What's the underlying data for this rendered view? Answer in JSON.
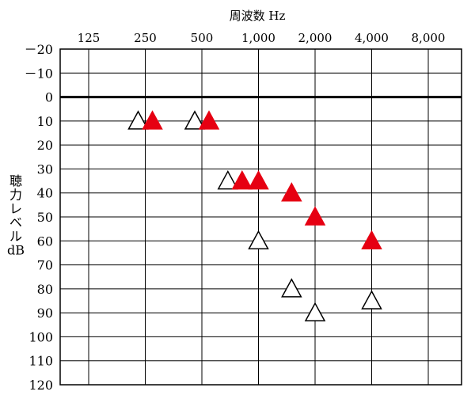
{
  "chart_data": {
    "type": "scatter",
    "title": "周波数 Hz",
    "xlabel": "周波数 Hz",
    "ylabel": "聴力レベル dB",
    "ylabel_lines": [
      "聴",
      "力",
      "レ",
      "ベ",
      "ル",
      "dB"
    ],
    "x_scale": "log2",
    "x_ticks": [
      125,
      250,
      500,
      1000,
      2000,
      4000,
      8000
    ],
    "x_tick_labels": [
      "125",
      "250",
      "500",
      "1,000",
      "2,000",
      "4,000",
      "8,000"
    ],
    "y_inverted": true,
    "ylim": [
      -20,
      120
    ],
    "y_ticks": [
      -20,
      -10,
      0,
      10,
      20,
      30,
      40,
      50,
      60,
      70,
      80,
      90,
      100,
      110,
      120
    ],
    "y_tick_labels": [
      "－20",
      "－10",
      "0",
      "10",
      "20",
      "30",
      "40",
      "50",
      "60",
      "70",
      "80",
      "90",
      "100",
      "110",
      "120"
    ],
    "grid": true,
    "reference_line_y": 0,
    "series": [
      {
        "marker": "triangle-open",
        "color": "#ffffff",
        "stroke": "#000000",
        "points": [
          {
            "x": 250,
            "y": 10
          },
          {
            "x": 500,
            "y": 10
          },
          {
            "x": 750,
            "y": 35
          },
          {
            "x": 1000,
            "y": 60
          },
          {
            "x": 1500,
            "y": 80
          },
          {
            "x": 2000,
            "y": 90
          },
          {
            "x": 4000,
            "y": 85
          }
        ]
      },
      {
        "marker": "triangle-filled",
        "color": "#e60012",
        "stroke": "#e60012",
        "points": [
          {
            "x": 250,
            "y": 10
          },
          {
            "x": 500,
            "y": 10
          },
          {
            "x": 750,
            "y": 35
          },
          {
            "x": 1000,
            "y": 35
          },
          {
            "x": 1500,
            "y": 40
          },
          {
            "x": 2000,
            "y": 50
          },
          {
            "x": 4000,
            "y": 60
          }
        ]
      }
    ]
  }
}
